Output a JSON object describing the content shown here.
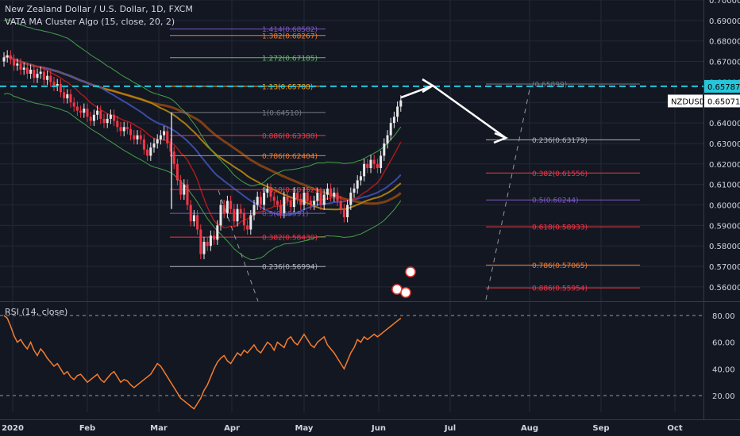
{
  "header": {
    "title": "New Zealand Dollar / U.S. Dollar, 1D, FXCM",
    "indicator": "VATA MA Cluster Algo (15, close, 20, 2)",
    "rsi_title": "RSI (14, close)"
  },
  "colors": {
    "background": "#131722",
    "grid": "#242838",
    "axis_text": "#d1d4dc",
    "up": "#e8e8e8",
    "down": "#f23645",
    "target_line": "#26c6da",
    "rsi_line": "#f57c2f"
  },
  "chart_data": [
    {
      "type": "candlestick",
      "symbol": "NZDUSD",
      "ylim": [
        0.553,
        0.7
      ],
      "y_ticks": [
        "0.70000",
        "0.69000",
        "0.68000",
        "0.67000",
        "0.66000",
        "0.65000",
        "0.64000",
        "0.63000",
        "0.62000",
        "0.61000",
        "0.60000",
        "0.59000",
        "0.58000",
        "0.57000",
        "0.56000"
      ],
      "x_ticks": [
        "2020",
        "Feb",
        "Mar",
        "Apr",
        "May",
        "Jun",
        "Jul",
        "Aug",
        "Sep",
        "Oct"
      ],
      "price_labels": [
        {
          "text": "0.65787",
          "value": 0.65787,
          "kind": "target"
        },
        {
          "text": "NZDUSD",
          "value": 0.65071,
          "kind": "symbol"
        },
        {
          "text": "0.65071",
          "value": 0.65071,
          "kind": "last"
        }
      ],
      "close_series": [
        0.672,
        0.673,
        0.671,
        0.668,
        0.669,
        0.666,
        0.667,
        0.664,
        0.666,
        0.662,
        0.664,
        0.665,
        0.661,
        0.663,
        0.66,
        0.658,
        0.659,
        0.655,
        0.652,
        0.654,
        0.65,
        0.648,
        0.646,
        0.645,
        0.647,
        0.643,
        0.641,
        0.644,
        0.646,
        0.642,
        0.64,
        0.642,
        0.644,
        0.641,
        0.638,
        0.636,
        0.638,
        0.637,
        0.634,
        0.632,
        0.634,
        0.632,
        0.627,
        0.624,
        0.628,
        0.63,
        0.632,
        0.634,
        0.636,
        0.63,
        0.626,
        0.62,
        0.612,
        0.605,
        0.61,
        0.6,
        0.592,
        0.595,
        0.588,
        0.576,
        0.582,
        0.58,
        0.585,
        0.583,
        0.59,
        0.6,
        0.596,
        0.602,
        0.598,
        0.592,
        0.598,
        0.596,
        0.59,
        0.588,
        0.595,
        0.6,
        0.604,
        0.6,
        0.606,
        0.608,
        0.604,
        0.602,
        0.6,
        0.596,
        0.604,
        0.602,
        0.599,
        0.606,
        0.603,
        0.6,
        0.606,
        0.602,
        0.6,
        0.602,
        0.606,
        0.6,
        0.605,
        0.608,
        0.604,
        0.606,
        0.602,
        0.598,
        0.594,
        0.6,
        0.606,
        0.608,
        0.612,
        0.614,
        0.62,
        0.618,
        0.622,
        0.62,
        0.618,
        0.624,
        0.63,
        0.634,
        0.64,
        0.643,
        0.648,
        0.651
      ],
      "fib_left": [
        {
          "label": "1.414(0.68582)",
          "value": 0.68582,
          "color": "#7e57c2"
        },
        {
          "label": "1.382(0.68267)",
          "value": 0.68267,
          "color": "#f57c2f"
        },
        {
          "label": "1.272(0.67185)",
          "value": 0.67185,
          "color": "#66bb6a"
        },
        {
          "label": "1.13(0.65788)",
          "value": 0.65788,
          "color": "#f9a825"
        },
        {
          "label": "1(0.64510)",
          "value": 0.6451,
          "color": "#787b86"
        },
        {
          "label": "0.886(0.63388)",
          "value": 0.63388,
          "color": "#f23645"
        },
        {
          "label": "0.786(0.62404)",
          "value": 0.62404,
          "color": "#f57c2f"
        },
        {
          "label": "0.618(0.60752)",
          "value": 0.60752,
          "color": "#f23645"
        },
        {
          "label": "0.5(0.59591)",
          "value": 0.59591,
          "color": "#7e57c2"
        },
        {
          "label": "0.382(0.58430)",
          "value": 0.5843,
          "color": "#f23645"
        },
        {
          "label": "0.236(0.56994)",
          "value": 0.56994,
          "color": "#b2b5be"
        }
      ],
      "fib_right": [
        {
          "label": "0.236(0.63179)",
          "value": 0.63179,
          "color": "#b2b5be"
        },
        {
          "label": "0.382(0.61556)",
          "value": 0.61556,
          "color": "#f23645"
        },
        {
          "label": "0.5(0.60244)",
          "value": 0.60244,
          "color": "#7e57c2"
        },
        {
          "label": "0.618(0.58933)",
          "value": 0.58933,
          "color": "#f23645"
        },
        {
          "label": "0.786(0.57065)",
          "value": 0.57065,
          "color": "#f57c2f"
        },
        {
          "label": "0.886(0.55954)",
          "value": 0.55954,
          "color": "#f23645"
        },
        {
          "label": "(0.65899)",
          "value": 0.65899,
          "color": "#787b86"
        }
      ]
    },
    {
      "type": "line",
      "name": "RSI (14, close)",
      "ylim": [
        0,
        100
      ],
      "y_ticks": [
        "80.00",
        "60.00",
        "40.00",
        "20.00"
      ],
      "levels": [
        80,
        20
      ],
      "values": [
        80,
        78,
        72,
        65,
        60,
        62,
        58,
        55,
        60,
        54,
        50,
        55,
        52,
        48,
        45,
        42,
        44,
        40,
        36,
        38,
        34,
        32,
        35,
        36,
        33,
        30,
        32,
        34,
        36,
        32,
        30,
        33,
        36,
        38,
        34,
        30,
        32,
        31,
        28,
        26,
        28,
        30,
        32,
        34,
        36,
        40,
        44,
        42,
        38,
        34,
        30,
        26,
        22,
        18,
        16,
        14,
        12,
        10,
        14,
        18,
        24,
        28,
        34,
        40,
        45,
        48,
        50,
        46,
        44,
        48,
        52,
        50,
        54,
        52,
        55,
        58,
        54,
        52,
        56,
        60,
        58,
        54,
        60,
        58,
        56,
        62,
        64,
        60,
        58,
        62,
        66,
        62,
        58,
        56,
        60,
        62,
        64,
        58,
        55,
        52,
        48,
        44,
        40,
        46,
        52,
        56,
        62,
        60,
        64,
        62,
        64,
        66,
        64,
        66,
        68,
        70,
        72,
        74,
        76,
        78
      ]
    }
  ]
}
